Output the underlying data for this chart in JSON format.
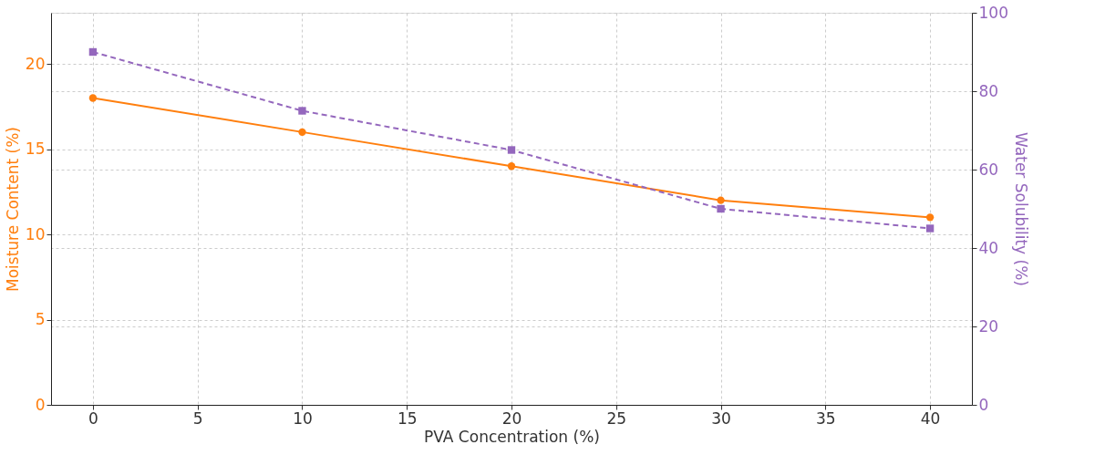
{
  "chart_data": {
    "type": "line",
    "xlabel": "PVA Concentration (%)",
    "ylabel": "Moisture Content (%)",
    "y2label": "Water Solubility (%)",
    "x": [
      0,
      10,
      20,
      30,
      40
    ],
    "series": [
      {
        "name": null,
        "color": "#ff7f0e",
        "values": [
          18,
          16,
          14,
          12,
          11
        ],
        "marker": "circle",
        "line_style": "solid"
      },
      {
        "name": null,
        "color": "#9467bd",
        "values": [
          90,
          75,
          65,
          50,
          45
        ],
        "axis": "y2",
        "marker": "square",
        "line_style": "dashed"
      }
    ],
    "xlim": [
      -2,
      42
    ],
    "xticks": [
      0,
      5,
      10,
      15,
      20,
      25,
      30,
      35,
      40
    ],
    "ylim": [
      0,
      23
    ],
    "yticks": [
      0,
      5,
      10,
      15,
      20
    ],
    "y2lim": [
      0,
      100
    ],
    "y2ticks": [
      0,
      20,
      40,
      60,
      80,
      100
    ],
    "grid": true
  }
}
